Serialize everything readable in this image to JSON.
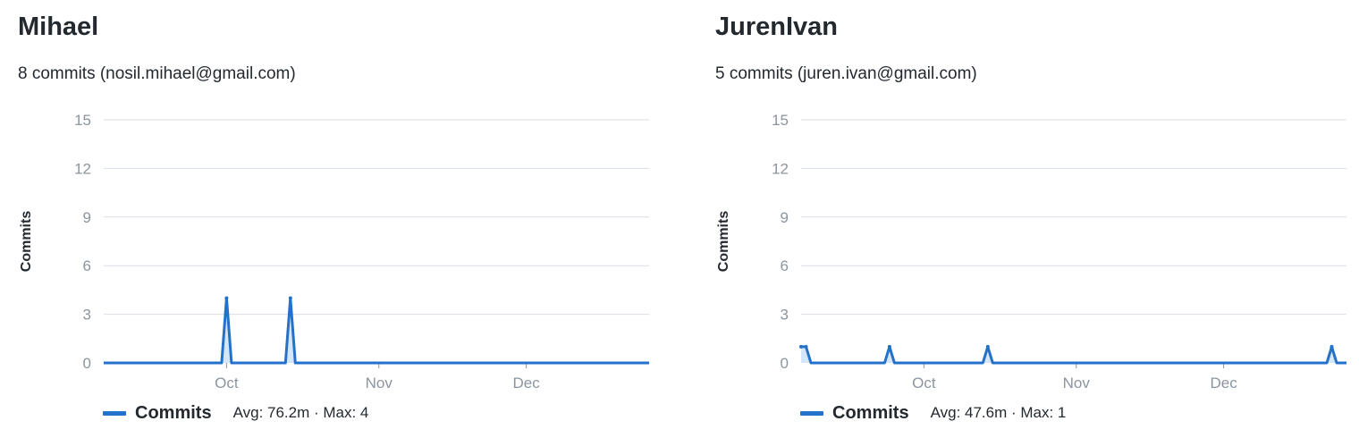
{
  "panels": [
    {
      "name": "Mihael",
      "summary": "8 commits (nosil.mihael@gmail.com)",
      "legend": {
        "label": "Commits",
        "stats": "Avg: 76.2m · Max: 4"
      }
    },
    {
      "name": "JurenIvan",
      "summary": "5 commits (juren.ivan@gmail.com)",
      "legend": {
        "label": "Commits",
        "stats": "Avg: 47.6m · Max: 1"
      }
    }
  ],
  "colors": {
    "line": "#2371c9",
    "fill": "#d0e3f7",
    "grid": "#d8dee4"
  },
  "chart_data": [
    {
      "type": "area",
      "ylabel": "Commits",
      "ylim": [
        0,
        15
      ],
      "yticks": [
        0,
        3,
        6,
        9,
        12,
        15
      ],
      "xlim": [
        "2020-09-06",
        "2020-12-26"
      ],
      "xticks": [
        {
          "label": "Oct",
          "date": "2020-10-01"
        },
        {
          "label": "Nov",
          "date": "2020-11-01"
        },
        {
          "label": "Dec",
          "date": "2020-12-01"
        }
      ],
      "grid": true,
      "legend_position": "bottom-left",
      "series": [
        {
          "name": "Commits",
          "points": [
            {
              "date": "2020-09-06",
              "value": 0
            },
            {
              "date": "2020-09-30",
              "value": 0
            },
            {
              "date": "2020-10-01",
              "value": 4
            },
            {
              "date": "2020-10-02",
              "value": 0
            },
            {
              "date": "2020-10-13",
              "value": 0
            },
            {
              "date": "2020-10-14",
              "value": 4
            },
            {
              "date": "2020-10-15",
              "value": 0
            },
            {
              "date": "2020-12-26",
              "value": 0
            }
          ]
        }
      ]
    },
    {
      "type": "area",
      "ylabel": "Commits",
      "ylim": [
        0,
        15
      ],
      "yticks": [
        0,
        3,
        6,
        9,
        12,
        15
      ],
      "xlim": [
        "2020-09-06",
        "2020-12-26"
      ],
      "xticks": [
        {
          "label": "Oct",
          "date": "2020-10-01"
        },
        {
          "label": "Nov",
          "date": "2020-11-01"
        },
        {
          "label": "Dec",
          "date": "2020-12-01"
        }
      ],
      "grid": true,
      "legend_position": "bottom-left",
      "series": [
        {
          "name": "Commits",
          "points": [
            {
              "date": "2020-09-06",
              "value": 1
            },
            {
              "date": "2020-09-07",
              "value": 1
            },
            {
              "date": "2020-09-08",
              "value": 0
            },
            {
              "date": "2020-09-23",
              "value": 0
            },
            {
              "date": "2020-09-24",
              "value": 1
            },
            {
              "date": "2020-09-25",
              "value": 0
            },
            {
              "date": "2020-10-13",
              "value": 0
            },
            {
              "date": "2020-10-14",
              "value": 1
            },
            {
              "date": "2020-10-15",
              "value": 0
            },
            {
              "date": "2020-12-22",
              "value": 0
            },
            {
              "date": "2020-12-23",
              "value": 1
            },
            {
              "date": "2020-12-24",
              "value": 0
            },
            {
              "date": "2020-12-26",
              "value": 0
            }
          ]
        }
      ]
    }
  ]
}
